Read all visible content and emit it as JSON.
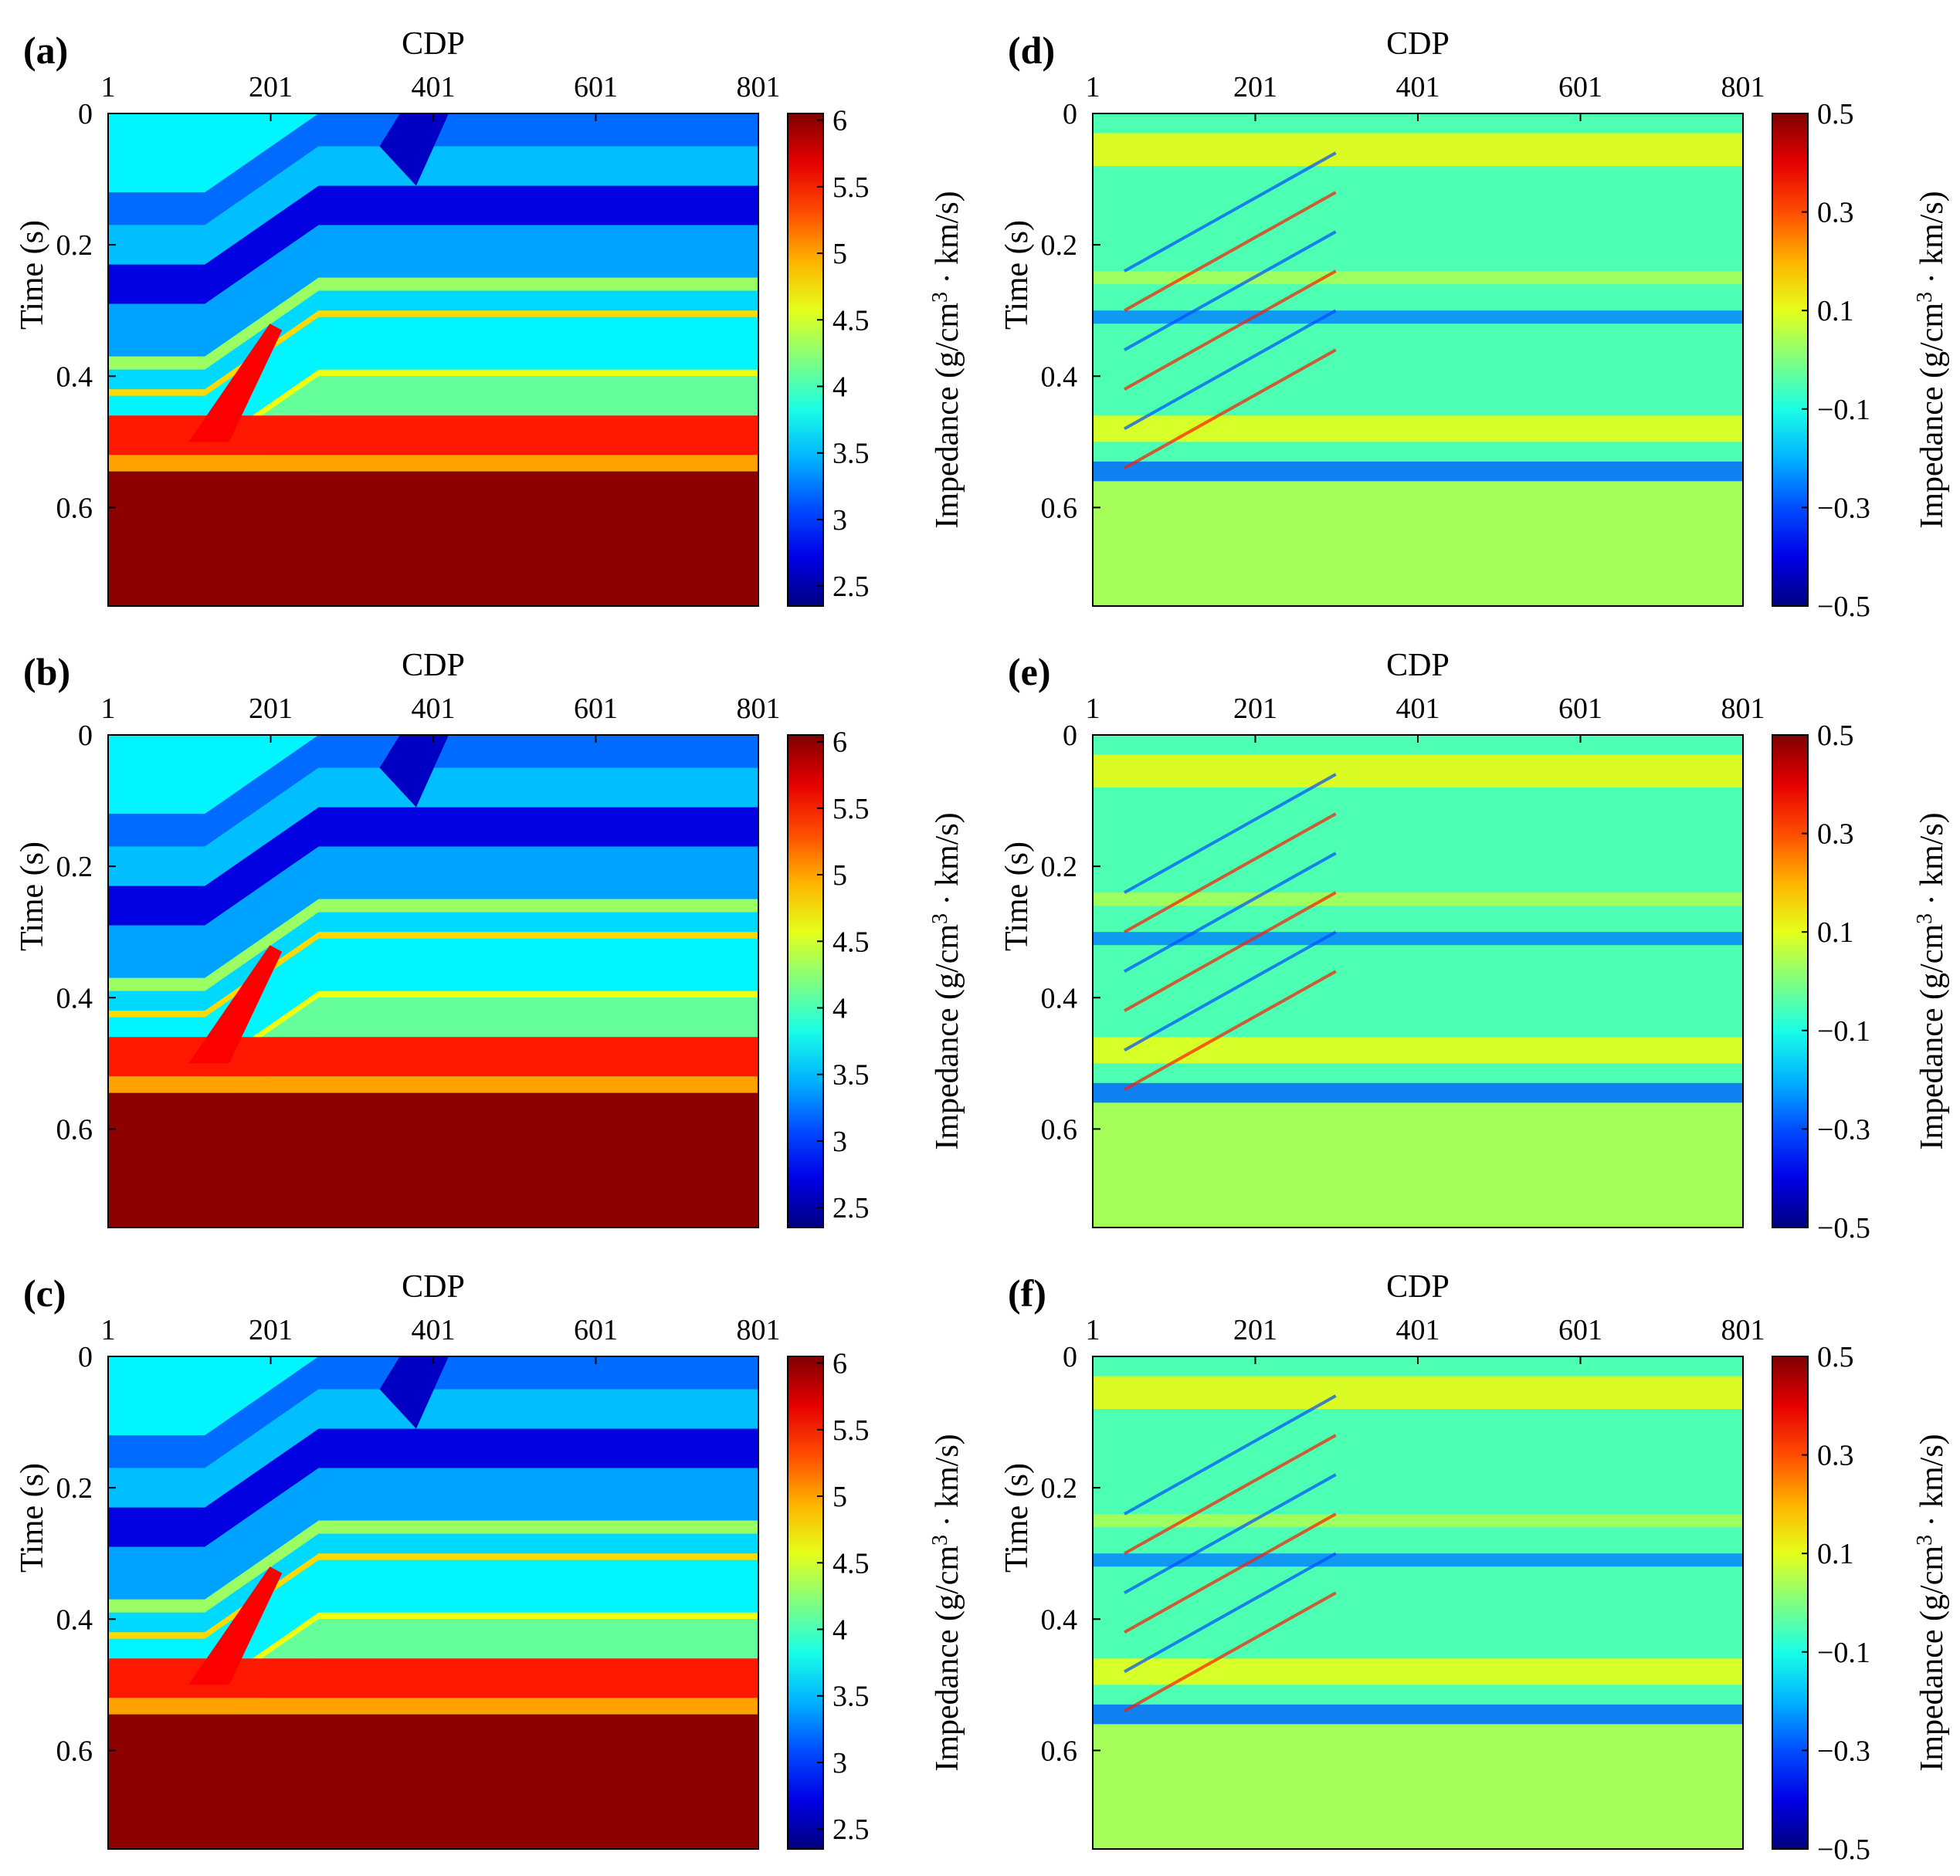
{
  "chart_data": [
    {
      "type": "heatmap",
      "panel_label": "(a)",
      "xlabel": "CDP",
      "ylabel": "Time (s)",
      "x_ticks": [
        "1",
        "201",
        "401",
        "601",
        "801"
      ],
      "y_ticks": [
        "0",
        "0.2",
        "0.4",
        "0.6"
      ],
      "xlim": [
        1,
        801
      ],
      "ylim": [
        0,
        0.75
      ],
      "colorbar": {
        "label_main": "Impedance (g/cm",
        "label_sup": "3",
        "label_tail": "· km/s)",
        "ticks": [
          "2.5",
          "3",
          "3.5",
          "4",
          "4.5",
          "5",
          "5.5",
          "6"
        ],
        "range": [
          2.35,
          6.05
        ],
        "colormap": "jet"
      },
      "kind": "impedance"
    },
    {
      "type": "heatmap",
      "panel_label": "(b)",
      "xlabel": "CDP",
      "ylabel": "Time (s)",
      "x_ticks": [
        "1",
        "201",
        "401",
        "601",
        "801"
      ],
      "y_ticks": [
        "0",
        "0.2",
        "0.4",
        "0.6"
      ],
      "xlim": [
        1,
        801
      ],
      "ylim": [
        0,
        0.75
      ],
      "colorbar": {
        "label_main": "Impedance (g/cm",
        "label_sup": "3",
        "label_tail": "· km/s)",
        "ticks": [
          "2.5",
          "3",
          "3.5",
          "4",
          "4.5",
          "5",
          "5.5",
          "6"
        ],
        "range": [
          2.35,
          6.05
        ],
        "colormap": "jet"
      },
      "kind": "impedance"
    },
    {
      "type": "heatmap",
      "panel_label": "(c)",
      "xlabel": "CDP",
      "ylabel": "Time (s)",
      "x_ticks": [
        "1",
        "201",
        "401",
        "601",
        "801"
      ],
      "y_ticks": [
        "0",
        "0.2",
        "0.4",
        "0.6"
      ],
      "xlim": [
        1,
        801
      ],
      "ylim": [
        0,
        0.75
      ],
      "colorbar": {
        "label_main": "Impedance (g/cm",
        "label_sup": "3",
        "label_tail": "· km/s)",
        "ticks": [
          "2.5",
          "3",
          "3.5",
          "4",
          "4.5",
          "5",
          "5.5",
          "6"
        ],
        "range": [
          2.35,
          6.05
        ],
        "colormap": "jet"
      },
      "kind": "impedance"
    },
    {
      "type": "heatmap",
      "panel_label": "(d)",
      "xlabel": "CDP",
      "ylabel": "Time (s)",
      "x_ticks": [
        "1",
        "201",
        "401",
        "601",
        "801"
      ],
      "y_ticks": [
        "0",
        "0.2",
        "0.4",
        "0.6"
      ],
      "xlim": [
        1,
        801
      ],
      "ylim": [
        0,
        0.75
      ],
      "colorbar": {
        "label_main": "Impedance (g/cm",
        "label_sup": "3",
        "label_tail": "· km/s)",
        "ticks": [
          "0.5",
          "0.3",
          "0.1",
          "−0.1",
          "−0.3",
          "−0.5"
        ],
        "range": [
          -0.5,
          0.5
        ],
        "colormap": "jet"
      },
      "kind": "residual"
    },
    {
      "type": "heatmap",
      "panel_label": "(e)",
      "xlabel": "CDP",
      "ylabel": "Time (s)",
      "x_ticks": [
        "1",
        "201",
        "401",
        "601",
        "801"
      ],
      "y_ticks": [
        "0",
        "0.2",
        "0.4",
        "0.6"
      ],
      "xlim": [
        1,
        801
      ],
      "ylim": [
        0,
        0.75
      ],
      "colorbar": {
        "label_main": "Impedance (g/cm",
        "label_sup": "3",
        "label_tail": "· km/s)",
        "ticks": [
          "0.5",
          "0.3",
          "0.1",
          "−0.1",
          "−0.3",
          "−0.5"
        ],
        "range": [
          -0.5,
          0.5
        ],
        "colormap": "jet"
      },
      "kind": "residual"
    },
    {
      "type": "heatmap",
      "panel_label": "(f)",
      "xlabel": "CDP",
      "ylabel": "Time (s)",
      "x_ticks": [
        "1",
        "201",
        "401",
        "601",
        "801"
      ],
      "y_ticks": [
        "0",
        "0.2",
        "0.4",
        "0.6"
      ],
      "xlim": [
        1,
        801
      ],
      "ylim": [
        0,
        0.75
      ],
      "colorbar": {
        "label_main": "Impedance (g/cm",
        "label_sup": "3",
        "label_tail": "· km/s)",
        "ticks": [
          "0.5",
          "0.3",
          "0.1",
          "−0.1",
          "−0.3",
          "−0.5"
        ],
        "range": [
          -0.5,
          0.5
        ],
        "colormap": "jet"
      },
      "kind": "residual"
    }
  ]
}
